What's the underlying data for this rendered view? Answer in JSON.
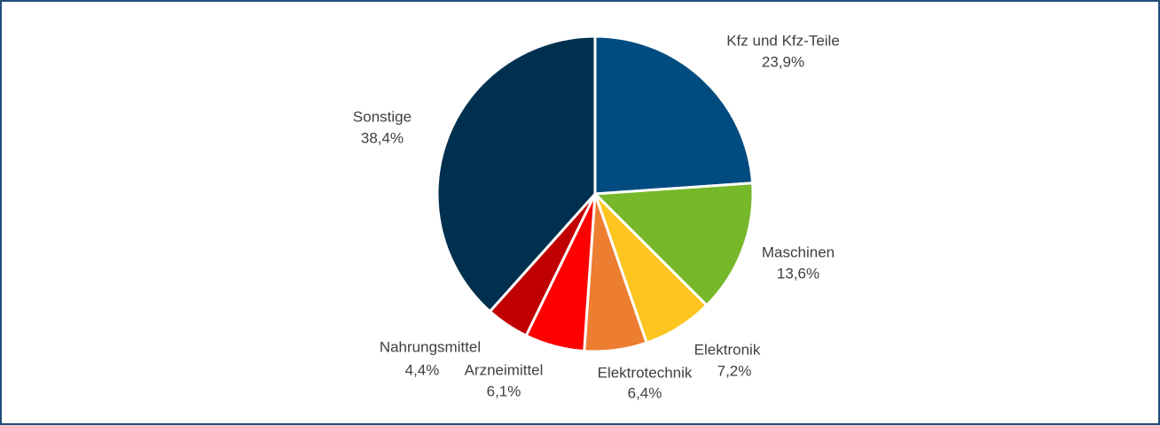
{
  "chart_data": {
    "type": "pie",
    "categories": [
      "Kfz und Kfz-Teile",
      "Maschinen",
      "Elektronik",
      "Elektrotechnik",
      "Arzneimittel",
      "Nahrungsmittel",
      "Sonstige"
    ],
    "values": [
      23.9,
      13.6,
      7.2,
      6.4,
      6.1,
      4.4,
      38.4
    ],
    "value_labels": [
      "23,9%",
      "13,6%",
      "7,2%",
      "6,4%",
      "6,1%",
      "4,4%",
      "38,4%"
    ],
    "colors": [
      "#004b7f",
      "#76b82a",
      "#fdc520",
      "#ed7d31",
      "#ff0000",
      "#c00000",
      "#00304f"
    ]
  }
}
